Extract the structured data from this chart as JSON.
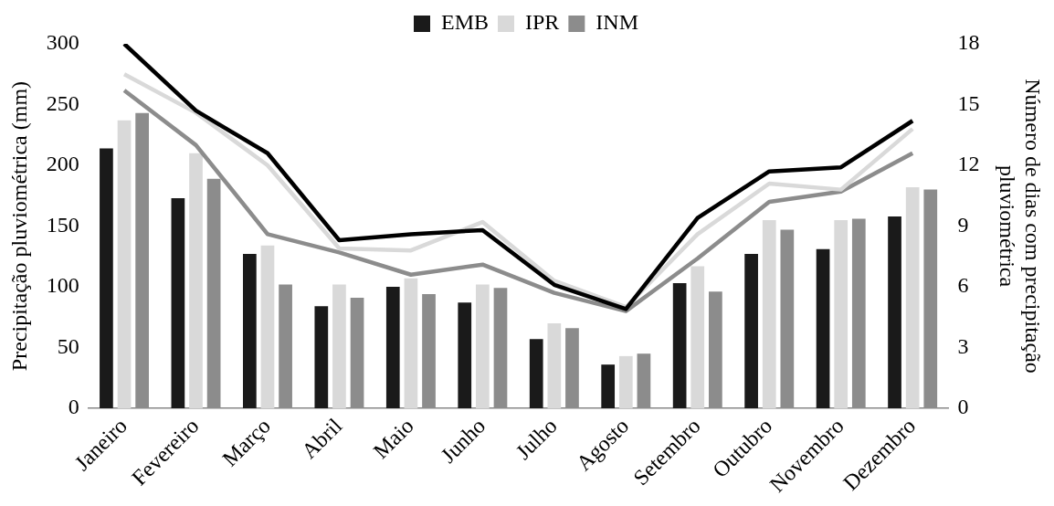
{
  "chart_data": {
    "type": "bar",
    "categories": [
      "Janeiro",
      "Fevereiro",
      "Março",
      "Abril",
      "Maio",
      "Junho",
      "Julho",
      "Agosto",
      "Setembro",
      "Outubro",
      "Novembro",
      "Dezembro"
    ],
    "series": [
      {
        "name": "EMB",
        "color": "#1a1a1a",
        "values": [
          214,
          173,
          127,
          84,
          100,
          87,
          57,
          36,
          103,
          127,
          131,
          158
        ]
      },
      {
        "name": "IPR",
        "color": "#d9d9d9",
        "values": [
          237,
          210,
          134,
          102,
          107,
          102,
          70,
          43,
          117,
          155,
          155,
          182
        ]
      },
      {
        "name": "INM",
        "color": "#8c8c8c",
        "values": [
          243,
          189,
          102,
          91,
          94,
          99,
          66,
          45,
          96,
          147,
          156,
          180
        ]
      },
      {
        "type": "line",
        "axis": "y2",
        "color": "#000000",
        "values": [
          18,
          14.7,
          12.6,
          8.3,
          8.6,
          8.8,
          6.1,
          4.9,
          9.4,
          11.7,
          11.9,
          14.2
        ]
      },
      {
        "type": "line",
        "axis": "y2",
        "color": "#d9d9d9",
        "values": [
          16.5,
          14.6,
          12,
          7.9,
          7.8,
          9.2,
          6.3,
          5.0,
          8.6,
          11.1,
          10.8,
          13.8
        ]
      },
      {
        "type": "line",
        "axis": "y2",
        "color": "#8c8c8c",
        "values": [
          15.7,
          13,
          8.6,
          7.7,
          6.6,
          7.1,
          5.7,
          4.8,
          7.4,
          10.2,
          10.7,
          12.6
        ]
      }
    ],
    "ylabel": "Precipitação pluviométrica (mm)",
    "y2label": "Número de dias com precipitação\npluviométrica",
    "ylim": [
      0,
      300
    ],
    "yticks": [
      0,
      50,
      100,
      150,
      200,
      250,
      300
    ],
    "y2lim": [
      0,
      18
    ],
    "y2ticks": [
      0,
      3,
      6,
      9,
      12,
      15,
      18
    ],
    "legend": "top",
    "grid": false,
    "marker": "none"
  }
}
